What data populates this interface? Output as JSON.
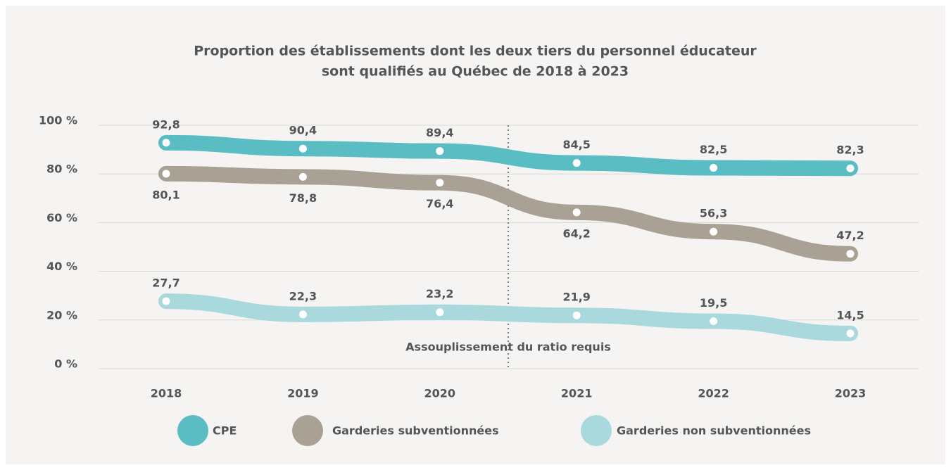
{
  "chart_data": {
    "type": "line",
    "title": [
      "Proportion des établissements dont les deux tiers du personnel éducateur",
      "sont qualifiés au Québec de 2018 à 2023"
    ],
    "categories": [
      "2018",
      "2019",
      "2020",
      "2021",
      "2022",
      "2023"
    ],
    "series": [
      {
        "name": "CPE",
        "color": "#5bbdc4",
        "values": [
          92.8,
          90.4,
          89.4,
          84.5,
          82.5,
          82.3
        ],
        "value_labels": [
          "92,8",
          "90,4",
          "89,4",
          "84,5",
          "82,5",
          "82,3"
        ]
      },
      {
        "name": "Garderies subventionnées",
        "color": "#a9a294",
        "values": [
          80.1,
          78.8,
          76.4,
          64.2,
          56.3,
          47.2
        ],
        "value_labels": [
          "80,1",
          "78,8",
          "76,4",
          "64,2",
          "56,3",
          "47,2"
        ]
      },
      {
        "name": "Garderies non subventionnées",
        "color": "#a9d9dc",
        "values": [
          27.7,
          22.3,
          23.2,
          21.9,
          19.5,
          14.5
        ],
        "value_labels": [
          "27,7",
          "22,3",
          "23,2",
          "21,9",
          "19,5",
          "14,5"
        ]
      }
    ],
    "ylim": [
      0,
      100
    ],
    "yticks": [
      {
        "value": 0,
        "label": "0 %"
      },
      {
        "value": 20,
        "label": "20 %"
      },
      {
        "value": 40,
        "label": "40 %"
      },
      {
        "value": 60,
        "label": "60 %"
      },
      {
        "value": 80,
        "label": "80 %"
      },
      {
        "value": 100,
        "label": "100 %"
      }
    ],
    "grid": true,
    "annotation": "Assouplissement du ratio requis"
  }
}
